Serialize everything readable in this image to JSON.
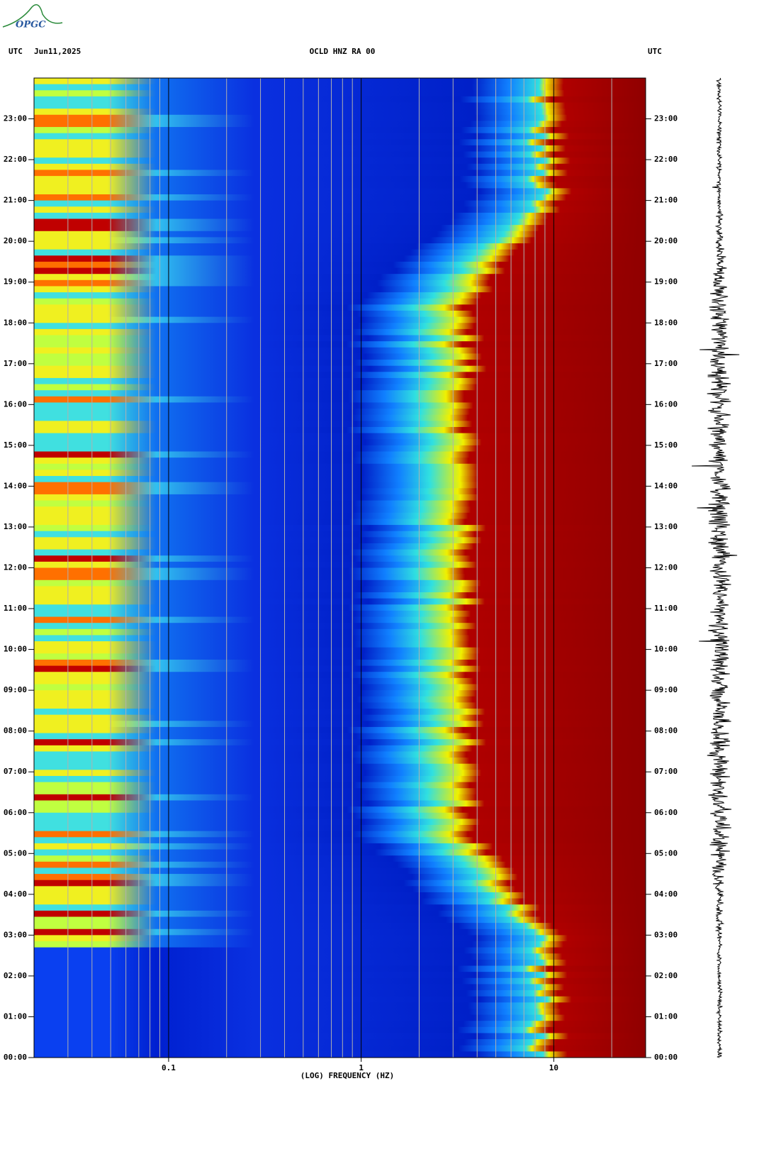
{
  "logo": "OPGC",
  "chart_data": {
    "type": "spectrogram",
    "title": "OCLD HNZ RA 00",
    "date": "Jun11,2025",
    "timezone_label": "UTC",
    "xlabel": "(LOG) FREQUENCY (HZ)",
    "xscale": "log",
    "xlim": [
      0.02,
      30
    ],
    "xticks": [
      0.1,
      1,
      10
    ],
    "xgrid_minor": [
      0.03,
      0.04,
      0.05,
      0.06,
      0.07,
      0.08,
      0.09,
      0.2,
      0.3,
      0.4,
      0.5,
      0.6,
      0.7,
      0.8,
      0.9,
      2,
      3,
      4,
      5,
      6,
      7,
      8,
      9,
      20
    ],
    "ylim": [
      0,
      24
    ],
    "yticks": [
      {
        "value": 0,
        "label": "00:00"
      },
      {
        "value": 1,
        "label": "01:00"
      },
      {
        "value": 2,
        "label": "02:00"
      },
      {
        "value": 3,
        "label": "03:00"
      },
      {
        "value": 4,
        "label": "04:00"
      },
      {
        "value": 5,
        "label": "05:00"
      },
      {
        "value": 6,
        "label": "06:00"
      },
      {
        "value": 7,
        "label": "07:00"
      },
      {
        "value": 8,
        "label": "08:00"
      },
      {
        "value": 9,
        "label": "09:00"
      },
      {
        "value": 10,
        "label": "10:00"
      },
      {
        "value": 11,
        "label": "11:00"
      },
      {
        "value": 12,
        "label": "12:00"
      },
      {
        "value": 13,
        "label": "13:00"
      },
      {
        "value": 14,
        "label": "14:00"
      },
      {
        "value": 15,
        "label": "15:00"
      },
      {
        "value": 16,
        "label": "16:00"
      },
      {
        "value": 17,
        "label": "17:00"
      },
      {
        "value": 18,
        "label": "18:00"
      },
      {
        "value": 19,
        "label": "19:00"
      },
      {
        "value": 20,
        "label": "20:00"
      },
      {
        "value": 21,
        "label": "21:00"
      },
      {
        "value": 22,
        "label": "22:00"
      },
      {
        "value": 23,
        "label": "23:00"
      }
    ]
  }
}
